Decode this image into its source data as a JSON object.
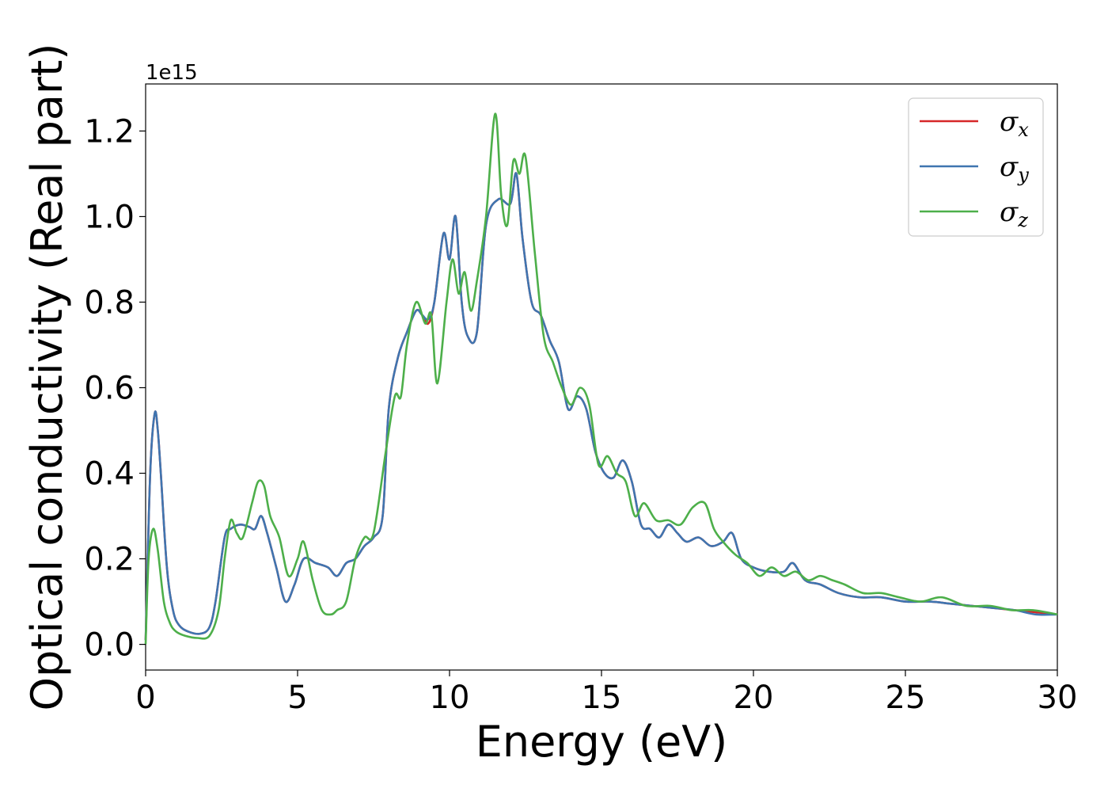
{
  "chart_data": {
    "type": "line",
    "xlabel": "Energy (eV)",
    "ylabel": "Optical conductivity (Real part)",
    "y_offset_label": "1e15",
    "y_scale": 1000000000000000.0,
    "xlim": [
      0,
      30
    ],
    "ylim": [
      -0.06,
      1.31
    ],
    "xticks": [
      0,
      5,
      10,
      15,
      20,
      25,
      30
    ],
    "xtick_labels": [
      "0",
      "5",
      "10",
      "15",
      "20",
      "25",
      "30"
    ],
    "yticks": [
      0.0,
      0.2,
      0.4,
      0.6,
      0.8,
      1.0,
      1.2
    ],
    "ytick_labels": [
      "0.0",
      "0.2",
      "0.4",
      "0.6",
      "0.8",
      "1.0",
      "1.2"
    ],
    "grid": false,
    "legend_position": "top-right",
    "series": [
      {
        "name": "σx",
        "legend_symbol": "σ",
        "legend_sub": "x",
        "color": "#d62728",
        "x": [
          0,
          0.15,
          0.3,
          0.4,
          0.5,
          0.7,
          0.9,
          1.1,
          1.4,
          1.8,
          2.1,
          2.3,
          2.6,
          2.8,
          3.1,
          3.4,
          3.6,
          3.8,
          4.0,
          4.3,
          4.6,
          4.9,
          5.2,
          5.6,
          6.0,
          6.3,
          6.6,
          6.9,
          7.2,
          7.5,
          7.8,
          8.0,
          8.3,
          8.6,
          8.9,
          9.1,
          9.3,
          9.5,
          9.8,
          10.0,
          10.2,
          10.4,
          10.6,
          10.9,
          11.2,
          11.6,
          12.0,
          12.2,
          12.4,
          12.7,
          13.0,
          13.3,
          13.6,
          13.9,
          14.2,
          14.5,
          14.8,
          15.1,
          15.4,
          15.7,
          16.0,
          16.3,
          16.6,
          16.9,
          17.2,
          17.5,
          17.8,
          18.2,
          18.6,
          19.0,
          19.3,
          19.6,
          20.0,
          20.5,
          21.0,
          21.3,
          21.7,
          22.2,
          22.8,
          23.5,
          24.2,
          25.0,
          25.8,
          26.5,
          27.2,
          27.9,
          28.6,
          29.3,
          30.0
        ],
        "values": [
          0.01,
          0.4,
          0.54,
          0.5,
          0.4,
          0.18,
          0.08,
          0.045,
          0.03,
          0.025,
          0.04,
          0.1,
          0.25,
          0.27,
          0.28,
          0.275,
          0.27,
          0.3,
          0.26,
          0.18,
          0.1,
          0.14,
          0.2,
          0.19,
          0.18,
          0.16,
          0.19,
          0.2,
          0.23,
          0.25,
          0.3,
          0.55,
          0.67,
          0.73,
          0.78,
          0.77,
          0.75,
          0.8,
          0.96,
          0.9,
          1.0,
          0.8,
          0.72,
          0.73,
          0.98,
          1.04,
          1.03,
          1.1,
          0.95,
          0.8,
          0.77,
          0.71,
          0.66,
          0.55,
          0.58,
          0.55,
          0.45,
          0.4,
          0.39,
          0.43,
          0.38,
          0.28,
          0.27,
          0.25,
          0.28,
          0.26,
          0.24,
          0.25,
          0.23,
          0.24,
          0.26,
          0.2,
          0.18,
          0.17,
          0.17,
          0.19,
          0.15,
          0.14,
          0.12,
          0.11,
          0.11,
          0.1,
          0.1,
          0.095,
          0.09,
          0.085,
          0.08,
          0.075,
          0.07
        ]
      },
      {
        "name": "σy",
        "legend_symbol": "σ",
        "legend_sub": "y",
        "color": "#3f75b0",
        "x": [
          0,
          0.15,
          0.3,
          0.4,
          0.5,
          0.7,
          0.9,
          1.1,
          1.4,
          1.8,
          2.1,
          2.3,
          2.6,
          2.8,
          3.1,
          3.4,
          3.6,
          3.8,
          4.0,
          4.3,
          4.6,
          4.9,
          5.2,
          5.6,
          6.0,
          6.3,
          6.6,
          6.9,
          7.2,
          7.5,
          7.8,
          8.0,
          8.3,
          8.6,
          8.9,
          9.1,
          9.3,
          9.5,
          9.8,
          10.0,
          10.2,
          10.4,
          10.6,
          10.9,
          11.2,
          11.6,
          12.0,
          12.2,
          12.4,
          12.7,
          13.0,
          13.3,
          13.6,
          13.9,
          14.2,
          14.5,
          14.8,
          15.1,
          15.4,
          15.7,
          16.0,
          16.3,
          16.6,
          16.9,
          17.2,
          17.5,
          17.8,
          18.2,
          18.6,
          19.0,
          19.3,
          19.6,
          20.0,
          20.5,
          21.0,
          21.3,
          21.7,
          22.2,
          22.8,
          23.5,
          24.2,
          25.0,
          25.8,
          26.5,
          27.2,
          27.9,
          28.6,
          29.3,
          30.0
        ],
        "values": [
          0.01,
          0.4,
          0.54,
          0.5,
          0.4,
          0.18,
          0.08,
          0.045,
          0.03,
          0.025,
          0.04,
          0.1,
          0.25,
          0.27,
          0.28,
          0.275,
          0.27,
          0.3,
          0.26,
          0.18,
          0.1,
          0.14,
          0.2,
          0.19,
          0.18,
          0.16,
          0.19,
          0.2,
          0.23,
          0.25,
          0.3,
          0.55,
          0.67,
          0.73,
          0.78,
          0.77,
          0.76,
          0.8,
          0.96,
          0.9,
          1.0,
          0.8,
          0.72,
          0.73,
          0.98,
          1.04,
          1.03,
          1.1,
          0.95,
          0.8,
          0.77,
          0.71,
          0.66,
          0.55,
          0.58,
          0.55,
          0.45,
          0.4,
          0.39,
          0.43,
          0.38,
          0.28,
          0.27,
          0.25,
          0.28,
          0.26,
          0.24,
          0.25,
          0.23,
          0.24,
          0.26,
          0.2,
          0.18,
          0.17,
          0.17,
          0.19,
          0.15,
          0.14,
          0.12,
          0.11,
          0.11,
          0.1,
          0.1,
          0.095,
          0.09,
          0.085,
          0.08,
          0.07,
          0.07
        ]
      },
      {
        "name": "σz",
        "legend_symbol": "σ",
        "legend_sub": "z",
        "color": "#4daf4a",
        "x": [
          0,
          0.1,
          0.25,
          0.4,
          0.6,
          0.8,
          1.0,
          1.3,
          1.7,
          2.1,
          2.4,
          2.6,
          2.8,
          3.0,
          3.2,
          3.5,
          3.7,
          3.9,
          4.1,
          4.4,
          4.7,
          5.0,
          5.2,
          5.5,
          5.8,
          6.1,
          6.3,
          6.6,
          6.9,
          7.2,
          7.5,
          7.9,
          8.2,
          8.4,
          8.6,
          8.9,
          9.2,
          9.4,
          9.6,
          9.9,
          10.1,
          10.3,
          10.5,
          10.7,
          10.9,
          11.2,
          11.5,
          11.7,
          11.9,
          12.1,
          12.3,
          12.5,
          12.8,
          13.1,
          13.4,
          13.7,
          14.0,
          14.3,
          14.6,
          14.9,
          15.2,
          15.5,
          15.8,
          16.1,
          16.4,
          16.8,
          17.2,
          17.6,
          18.0,
          18.4,
          18.7,
          19.0,
          19.4,
          19.8,
          20.2,
          20.6,
          21.0,
          21.4,
          21.8,
          22.2,
          22.6,
          23.0,
          23.6,
          24.2,
          24.8,
          25.5,
          26.2,
          27.0,
          27.8,
          28.5,
          29.2,
          30.0
        ],
        "values": [
          0.0,
          0.2,
          0.27,
          0.22,
          0.1,
          0.05,
          0.03,
          0.02,
          0.015,
          0.02,
          0.08,
          0.2,
          0.29,
          0.26,
          0.25,
          0.33,
          0.38,
          0.37,
          0.3,
          0.25,
          0.16,
          0.2,
          0.24,
          0.15,
          0.08,
          0.07,
          0.08,
          0.1,
          0.2,
          0.25,
          0.26,
          0.45,
          0.58,
          0.58,
          0.7,
          0.8,
          0.75,
          0.77,
          0.61,
          0.8,
          0.9,
          0.82,
          0.87,
          0.78,
          0.85,
          1.0,
          1.24,
          1.05,
          0.98,
          1.13,
          1.1,
          1.14,
          0.92,
          0.72,
          0.66,
          0.6,
          0.56,
          0.6,
          0.56,
          0.42,
          0.44,
          0.4,
          0.38,
          0.3,
          0.33,
          0.29,
          0.29,
          0.28,
          0.32,
          0.33,
          0.27,
          0.24,
          0.21,
          0.19,
          0.16,
          0.18,
          0.16,
          0.17,
          0.15,
          0.16,
          0.15,
          0.14,
          0.12,
          0.12,
          0.11,
          0.1,
          0.11,
          0.09,
          0.09,
          0.08,
          0.08,
          0.07
        ]
      }
    ]
  }
}
